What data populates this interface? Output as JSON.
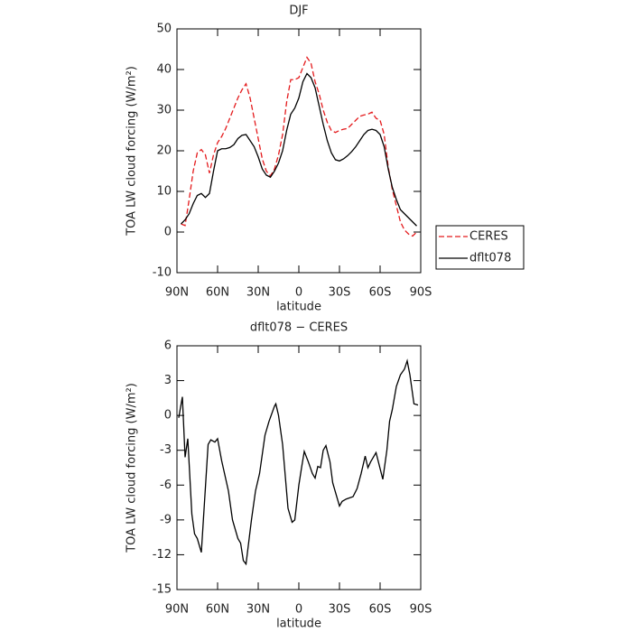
{
  "chart_data": [
    {
      "type": "line",
      "title": "DJF",
      "xlabel": "latitude",
      "ylabel": "TOA LW cloud forcing (W/m²)",
      "x": [
        87,
        84,
        81,
        78,
        75,
        72,
        69,
        66,
        63,
        60,
        57,
        54,
        51,
        48,
        45,
        42,
        39,
        36,
        33,
        30,
        27,
        24,
        21,
        18,
        15,
        12,
        9,
        6,
        3,
        0,
        -3,
        -6,
        -9,
        -12,
        -15,
        -18,
        -21,
        -24,
        -27,
        -30,
        -33,
        -36,
        -39,
        -42,
        -45,
        -48,
        -51,
        -54,
        -57,
        -60,
        -63,
        -66,
        -69,
        -72,
        -75,
        -78,
        -81,
        -84,
        -87
      ],
      "series": [
        {
          "name": "CERES",
          "color": "#e41a1c",
          "style": "dashed",
          "values": [
            2.0,
            1.6,
            8,
            15,
            19.5,
            20.3,
            19,
            14.5,
            19,
            22,
            23.5,
            25.5,
            28,
            30.5,
            33,
            35,
            36.5,
            33,
            28,
            23,
            18,
            15,
            13.8,
            15.5,
            19,
            24,
            32,
            37.5,
            37.5,
            38,
            40.5,
            43,
            41.5,
            37,
            34,
            30,
            27,
            25,
            24.5,
            25,
            25.3,
            25.5,
            26.5,
            27.5,
            28.5,
            28.8,
            29,
            29.5,
            28,
            27.5,
            24,
            16,
            10.5,
            6.5,
            2.5,
            0.5,
            -0.5,
            -1,
            0
          ]
        },
        {
          "name": "dflt078",
          "color": "#000000",
          "style": "solid",
          "values": [
            2,
            3,
            4.5,
            7,
            9,
            9.5,
            8.5,
            9.5,
            15,
            20,
            20.5,
            20.5,
            20.8,
            21.5,
            23,
            23.8,
            24,
            22.5,
            21,
            18.5,
            15.5,
            14,
            13.5,
            15,
            17,
            20,
            25,
            29,
            30.5,
            33,
            37,
            39,
            38,
            35.5,
            31,
            26.5,
            22.5,
            19.5,
            17.8,
            17.5,
            18,
            18.8,
            19.8,
            21,
            22.5,
            24,
            25,
            25.3,
            25,
            24,
            21,
            15.5,
            11,
            8,
            5.5,
            4.5,
            3.5,
            2.5,
            1.5
          ]
        }
      ],
      "xlim": [
        90,
        -90
      ],
      "xticks": [
        {
          "value": 90,
          "label": "90N"
        },
        {
          "value": 60,
          "label": "60N"
        },
        {
          "value": 30,
          "label": "30N"
        },
        0,
        {
          "value": -30,
          "label": "30S"
        },
        {
          "value": -60,
          "label": "60S"
        },
        {
          "value": -90,
          "label": "90S"
        }
      ],
      "ylim": [
        -10,
        50
      ],
      "yticks": [
        50,
        40,
        30,
        20,
        10,
        0,
        -10
      ],
      "legend": "right"
    },
    {
      "type": "line",
      "title": "dflt078 − CERES",
      "xlabel": "latitude",
      "ylabel": "TOA LW cloud forcing (W/m²)",
      "x": [
        88.7,
        86,
        84,
        82,
        79,
        77,
        75,
        72,
        67,
        65,
        62,
        60,
        57,
        52,
        49,
        45,
        43,
        41,
        39,
        35,
        32,
        29,
        25,
        22,
        18,
        17,
        15,
        12,
        8,
        5,
        3,
        0,
        -2,
        -4,
        -7,
        -10,
        -12,
        -14,
        -16,
        -18,
        -20,
        -23,
        -25,
        -28,
        -30,
        -32,
        -35,
        -40,
        -43,
        -46,
        -49,
        -51,
        -53,
        -57,
        -62,
        -65,
        -67,
        -69,
        -72,
        -75,
        -78,
        -80,
        -82,
        -85,
        -88
      ],
      "series": [
        {
          "name": "dflt078 − CERES",
          "color": "#000000",
          "style": "solid",
          "values": [
            -0.2,
            1.6,
            -3.6,
            -2,
            -8.5,
            -10.2,
            -10.6,
            -11.8,
            -2.5,
            -2.1,
            -2.3,
            -2,
            -3.9,
            -6.5,
            -9,
            -10.6,
            -11,
            -12.5,
            -12.8,
            -9,
            -6.5,
            -5,
            -1.7,
            -0.5,
            0.8,
            1,
            0,
            -2.5,
            -8,
            -9.2,
            -9,
            -6,
            -4.5,
            -3.1,
            -4,
            -5,
            -5.4,
            -4.4,
            -4.5,
            -3,
            -2.6,
            -4,
            -5.8,
            -7,
            -7.8,
            -7.4,
            -7.2,
            -7,
            -6.3,
            -5,
            -3.5,
            -4.5,
            -4,
            -3.2,
            -5.5,
            -3,
            -0.5,
            0.5,
            2.5,
            3.5,
            4,
            4.7,
            3.5,
            1,
            0.9
          ]
        }
      ],
      "xlim": [
        90,
        -90
      ],
      "xticks": [
        {
          "value": 90,
          "label": "90N"
        },
        {
          "value": 60,
          "label": "60N"
        },
        {
          "value": 30,
          "label": "30N"
        },
        0,
        {
          "value": -30,
          "label": "30S"
        },
        {
          "value": -60,
          "label": "60S"
        },
        {
          "value": -90,
          "label": "90S"
        }
      ],
      "ylim": [
        -15,
        6
      ],
      "yticks": [
        6,
        3,
        0,
        -3,
        -6,
        -9,
        -12,
        -15
      ]
    }
  ]
}
